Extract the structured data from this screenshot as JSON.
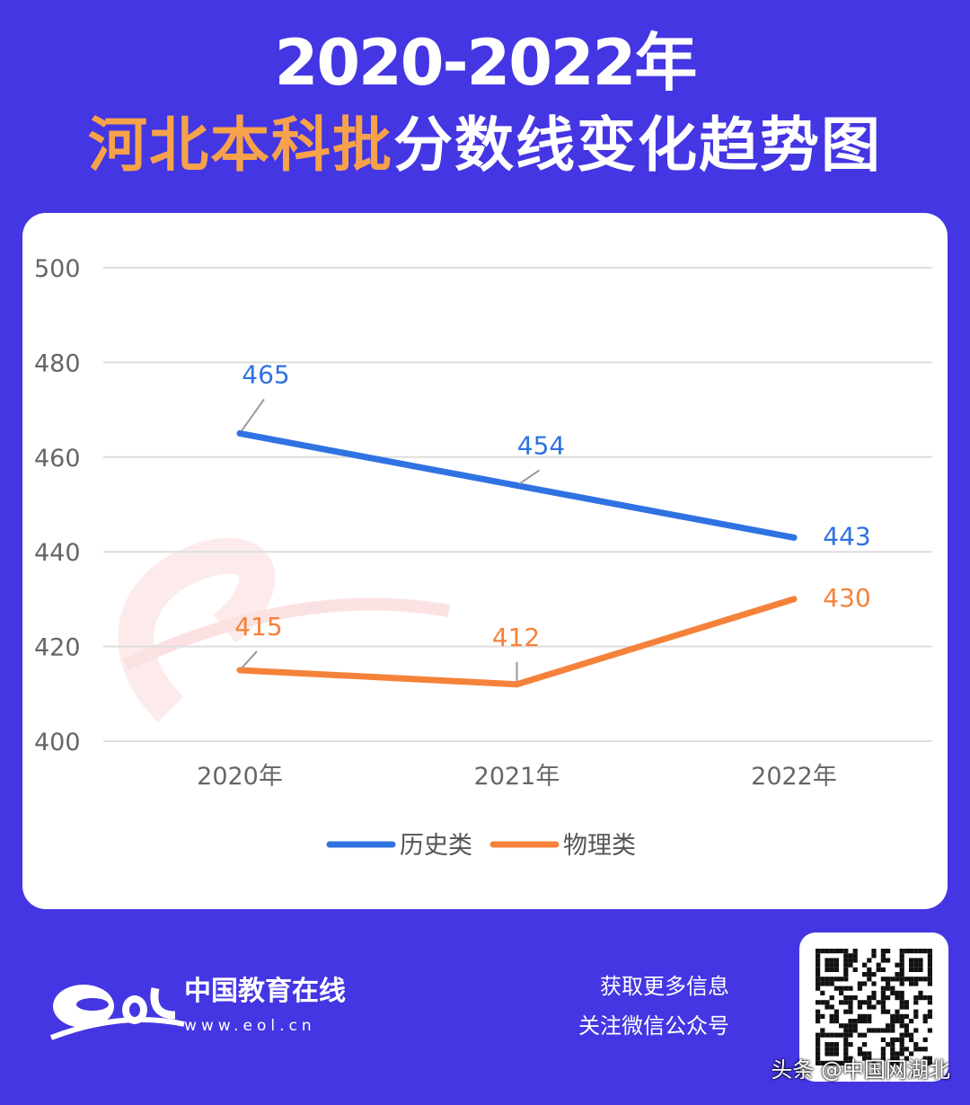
{
  "header": {
    "title_line1": "2020-2022年",
    "title_line2_highlight": "河北本科批",
    "title_line2_rest": "分数线变化趋势图"
  },
  "chart_data": {
    "type": "line",
    "categories": [
      "2020年",
      "2021年",
      "2022年"
    ],
    "ylim": [
      400,
      500
    ],
    "yticks": [
      "400",
      "420",
      "440",
      "460",
      "480",
      "500"
    ],
    "grid": true,
    "legend_placement": "bottom",
    "series": [
      {
        "name": "历史类",
        "values": [
          465,
          454,
          443
        ],
        "color": "#2f72e2"
      },
      {
        "name": "物理类",
        "values": [
          415,
          412,
          430
        ],
        "color": "#f5823a"
      }
    ],
    "watermark": "中国教育在线 www.eol.cn"
  },
  "footer": {
    "brand": "中国教育在线",
    "url": "www.eol.cn",
    "info_line1": "获取更多信息",
    "info_line2": "关注微信公众号",
    "credit": "头条 @中国网湖北"
  },
  "colors": {
    "background": "#4436e2",
    "highlight": "#f6a24a"
  }
}
